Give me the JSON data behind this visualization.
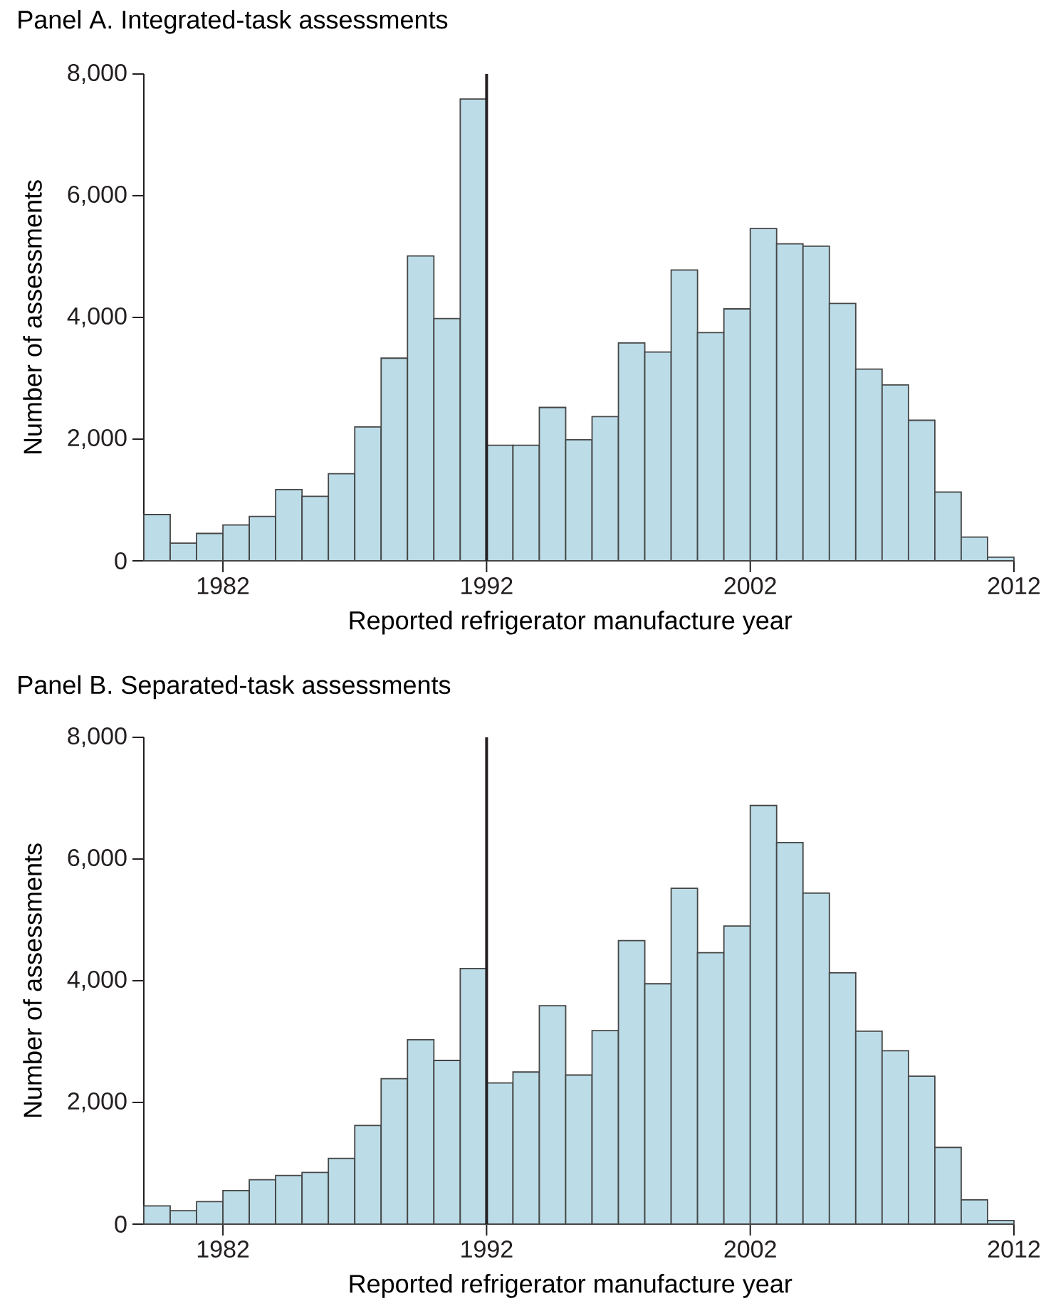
{
  "chart_data": [
    {
      "type": "histogram",
      "title": "Panel A. Integrated-task assessments",
      "xlabel": "Reported refrigerator manufacture year",
      "ylabel": "Number of assessments",
      "color": "#bcdde8",
      "bins": [
        1979,
        1980,
        1981,
        1982,
        1983,
        1984,
        1985,
        1986,
        1987,
        1988,
        1989,
        1990,
        1991,
        1992,
        1993,
        1994,
        1995,
        1996,
        1997,
        1998,
        1999,
        2000,
        2001,
        2002,
        2003,
        2004,
        2005,
        2006,
        2007,
        2008,
        2009,
        2010,
        2011,
        2012
      ],
      "values": [
        760,
        290,
        450,
        590,
        730,
        1170,
        1060,
        1430,
        2200,
        3330,
        5010,
        3980,
        7590,
        1900,
        1900,
        2520,
        1990,
        2370,
        3580,
        3430,
        4780,
        3750,
        4140,
        5460,
        5210,
        5170,
        4230,
        3150,
        2890,
        2310,
        1130,
        390,
        60
      ],
      "xlim": [
        1979,
        2012
      ],
      "ylim": [
        0,
        8000
      ],
      "xticks": [
        1982,
        1992,
        2002,
        2012
      ],
      "yticks": [
        0,
        {
          "value": 2000,
          "label": "2,000"
        },
        {
          "value": 4000,
          "label": "4,000"
        },
        {
          "value": 6000,
          "label": "6,000"
        },
        {
          "value": 8000,
          "label": "8,000"
        }
      ],
      "ref_lines": [
        {
          "axis": "x",
          "value": 1992,
          "color": "#231f20"
        }
      ]
    },
    {
      "type": "histogram",
      "title": "Panel B. Separated-task assessments",
      "xlabel": "Reported refrigerator manufacture year",
      "ylabel": "Number of assessments",
      "color": "#bcdde8",
      "bins": [
        1979,
        1980,
        1981,
        1982,
        1983,
        1984,
        1985,
        1986,
        1987,
        1988,
        1989,
        1990,
        1991,
        1992,
        1993,
        1994,
        1995,
        1996,
        1997,
        1998,
        1999,
        2000,
        2001,
        2002,
        2003,
        2004,
        2005,
        2006,
        2007,
        2008,
        2009,
        2010,
        2011,
        2012
      ],
      "values": [
        300,
        220,
        370,
        550,
        730,
        800,
        850,
        1080,
        1620,
        2390,
        3030,
        2690,
        4200,
        2320,
        2500,
        3590,
        2450,
        3180,
        4660,
        3950,
        5520,
        4460,
        4900,
        6880,
        6270,
        5440,
        4130,
        3170,
        2850,
        2430,
        1260,
        400,
        60
      ],
      "xlim": [
        1979,
        2012
      ],
      "ylim": [
        0,
        8000
      ],
      "xticks": [
        1982,
        1992,
        2002,
        2012
      ],
      "yticks": [
        0,
        {
          "value": 2000,
          "label": "2,000"
        },
        {
          "value": 4000,
          "label": "4,000"
        },
        {
          "value": 6000,
          "label": "6,000"
        },
        {
          "value": 8000,
          "label": "8,000"
        }
      ],
      "ref_lines": [
        {
          "axis": "x",
          "value": 1992,
          "color": "#231f20"
        }
      ]
    }
  ]
}
